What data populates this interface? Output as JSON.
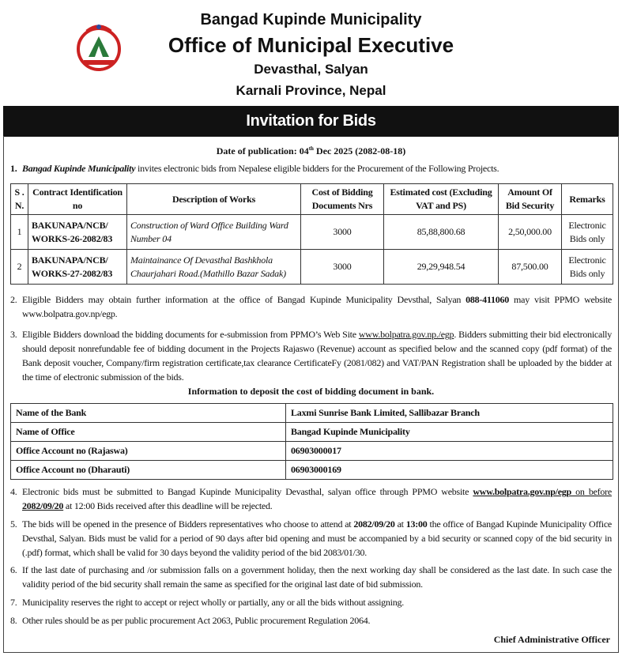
{
  "header": {
    "municipality": "Bangad Kupinde Municipality",
    "office": "Office of Municipal Executive",
    "location": "Devasthal, Salyan",
    "province": "Karnali Province, Nepal",
    "logo": "nepal-government-emblem"
  },
  "banner": {
    "title": "Invitation for Bids"
  },
  "publication": {
    "label": "Date of publication: 04",
    "sup": "th",
    "rest": " Dec 2025 (2082-08-18)"
  },
  "item1": {
    "num": "1.",
    "bold": "Bangad Kupinde Municipality",
    "text": " invites electronic bids from Nepalese eligible bidders for the Procurement of the Following Projects."
  },
  "projects": {
    "headers": [
      "S . N.",
      "Contract Identification no",
      "Description of Works",
      "Cost of Bidding Documents Nrs",
      "Estimated cost (Excluding VAT and PS)",
      "Amount Of Bid Security",
      "Remarks"
    ],
    "rows": [
      {
        "sn": "1",
        "id": "BAKUNAPA/NCB/ WORKS-26-2082/83",
        "desc": "Construction of Ward Office Building Ward Number 04",
        "doc_cost": "3000",
        "estimate": "85,88,800.68",
        "security": "2,50,000.00",
        "remarks": "Electronic Bids only"
      },
      {
        "sn": "2",
        "id": "BAKUNAPA/NCB/ WORKS-27-2082/83",
        "desc": "Maintainance Of Devasthal Bashkhola Chaurjahari Road.(Mathillo Bazar Sadak)",
        "doc_cost": "3000",
        "estimate": "29,29,948.54",
        "security": "87,500.00",
        "remarks": "Electronic Bids only"
      }
    ]
  },
  "item2": {
    "num": "2.",
    "a": "Eligible Bidders may obtain further information at the office of Bangad Kupinde Municipality Devsthal, Salyan ",
    "phone": "088-411060",
    "b": " may visit PPMO website www.bolpatra.gov.np/egp."
  },
  "item3": {
    "num": "3.",
    "a": "Eligible Bidders download the bidding documents for e-submission from PPMO’s Web Site ",
    "link": "www.bolpatra.gov.np./egp",
    "b": ". Bidders submitting their bid electronically should deposit nonrefundable fee of bidding document in the Projects Rajaswo (Revenue) account as specified below and the scanned copy (pdf format) of the Bank deposit voucher, Company/firm registration certificate,tax clearance CertificateFy (2081/082) and VAT/PAN Registration shall be uploaded by the bidder at the time of electronic submission of the bids."
  },
  "bank": {
    "title": "Information to deposit the cost of bidding document in bank.",
    "rows": [
      [
        "Name of the Bank",
        "Laxmi Sunrise Bank Limited, Sallibazar Branch"
      ],
      [
        "Name of Office",
        "Bangad Kupinde Municipality"
      ],
      [
        "Office Account no (Rajaswa)",
        "06903000017"
      ],
      [
        "Office Account no (Dharauti)",
        "06903000169"
      ]
    ]
  },
  "item4": {
    "num": "4.",
    "a": "Electronic bids must be submitted to Bangad Kupinde Municipality Devasthal, salyan office through PPMO website ",
    "link": "www.bolpatra.gov.np/egp",
    "b": " on before ",
    "date": "2082/09/20",
    "c": " at 12:00 Bids received after this deadline will be rejected."
  },
  "item5": {
    "num": "5.",
    "a": "The bids will be opened in the presence of Bidders representatives who choose to attend at ",
    "date": "2082/09/20",
    "b": " at ",
    "time": "13:00",
    "c": " the office of Bangad Kupinde Municipality Office Devsthal, Salyan. Bids must be valid for a period of 90 days after bid opening and must be accompanied by a bid security or scanned copy of the bid security in (.pdf) format, which shall be valid for 30 days beyond the validity period of the bid 2083/01/30."
  },
  "item6": {
    "num": "6.",
    "text": "If the last date of purchasing and /or submission falls on a government holiday, then the next working day shall be considered as the last date. In such case the validity period of the bid security shall remain the same as specified for the original last date of bid submission."
  },
  "item7": {
    "num": "7.",
    "text": "Municipality reserves the right to accept or reject wholly or partially, any or all the bids without assigning."
  },
  "item8": {
    "num": "8.",
    "text": "Other rules should be as per public procurement Act 2063, Public procurement Regulation 2064."
  },
  "signature": "Chief Administrative Officer"
}
